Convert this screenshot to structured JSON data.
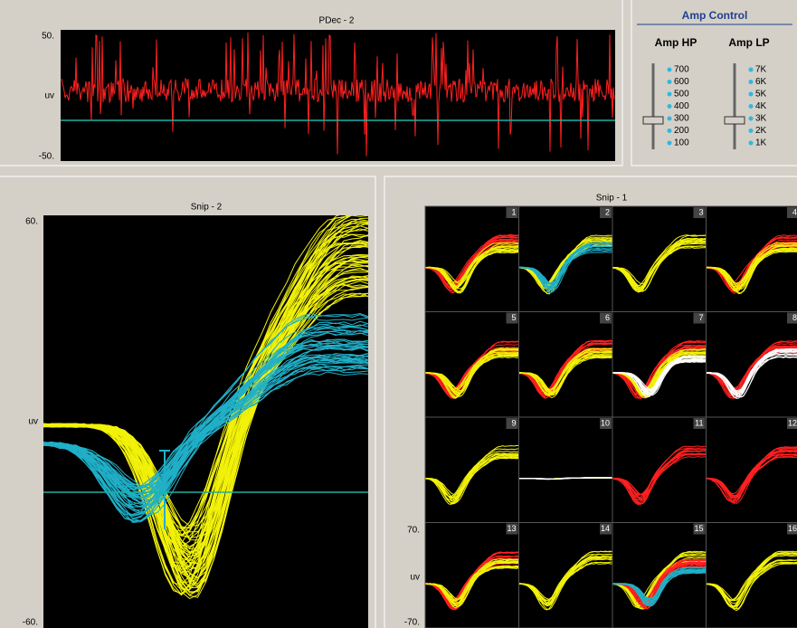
{
  "pdec": {
    "title": "PDec - 2",
    "y_top": "50.",
    "y_mid": "uv",
    "y_bottom": "-50."
  },
  "amp_control": {
    "title": "Amp Control",
    "hp": {
      "label": "Amp HP",
      "options": [
        "700",
        "600",
        "500",
        "400",
        "300",
        "200",
        "100"
      ]
    },
    "lp": {
      "label": "Amp LP",
      "options": [
        "7K",
        "6K",
        "5K",
        "4K",
        "3K",
        "2K",
        "1K"
      ]
    }
  },
  "snip2": {
    "title": "Snip - 2",
    "y_top": "60.",
    "y_mid": "uv",
    "y_bottom": "-60."
  },
  "snip1": {
    "title": "Snip - 1",
    "cells": [
      "1",
      "2",
      "3",
      "4",
      "5",
      "6",
      "7",
      "8",
      "9",
      "10",
      "11",
      "12",
      "13",
      "14",
      "15",
      "16"
    ],
    "y_top": "70.",
    "y_mid": "uv",
    "y_bottom": "-70."
  }
}
